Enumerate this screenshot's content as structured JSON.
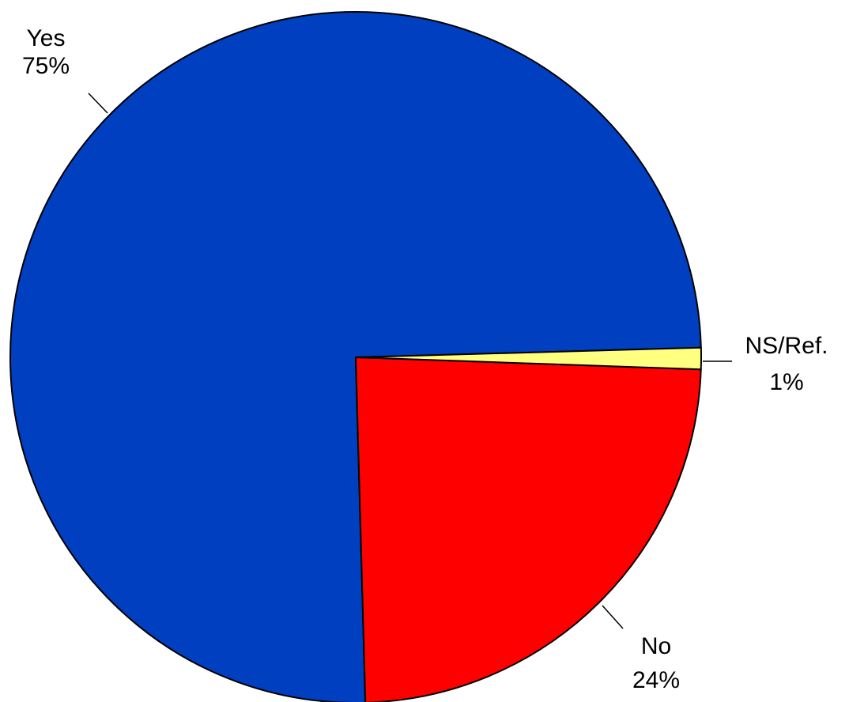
{
  "chart_data": {
    "type": "pie",
    "title": "",
    "slices": [
      {
        "label": "Yes",
        "pct_label": "75%",
        "value": 75,
        "color": "#0040C0"
      },
      {
        "label": "No",
        "pct_label": "24%",
        "value": 24,
        "color": "#FF0000"
      },
      {
        "label": "NS/Ref.",
        "pct_label": "1%",
        "value": 1,
        "color": "#FFFF80"
      }
    ],
    "legend": "none",
    "labels": "outside with leader lines"
  }
}
